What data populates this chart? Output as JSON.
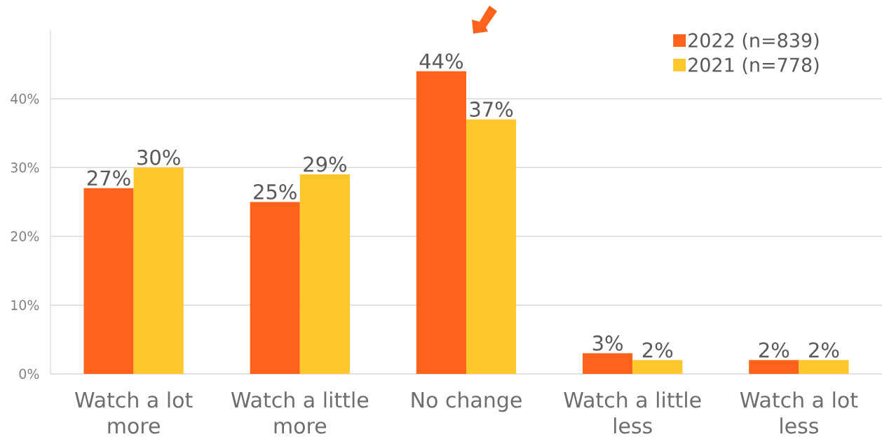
{
  "chart_data": {
    "type": "bar",
    "categories": [
      "Watch a lot more",
      "Watch a little more",
      "No change",
      "Watch a little less",
      "Watch a lot less"
    ],
    "series": [
      {
        "name": "2022 (n=839)",
        "color": "#ff631b",
        "values": [
          27,
          25,
          44,
          3,
          2
        ],
        "value_labels": [
          "27%",
          "25%",
          "44%",
          "3%",
          "2%"
        ]
      },
      {
        "name": "2021 (n=778)",
        "color": "#ffc72c",
        "values": [
          30,
          29,
          37,
          2,
          2
        ],
        "value_labels": [
          "30%",
          "29%",
          "37%",
          "2%",
          "2%"
        ]
      }
    ],
    "ylim": [
      0,
      50
    ],
    "yticks": [
      {
        "value": 0,
        "label": "0%"
      },
      {
        "value": 10,
        "label": "10%"
      },
      {
        "value": 20,
        "label": "20%"
      },
      {
        "value": 30,
        "label": "30%"
      },
      {
        "value": 40,
        "label": "40%"
      }
    ],
    "grid": "y",
    "legend": "top right"
  }
}
